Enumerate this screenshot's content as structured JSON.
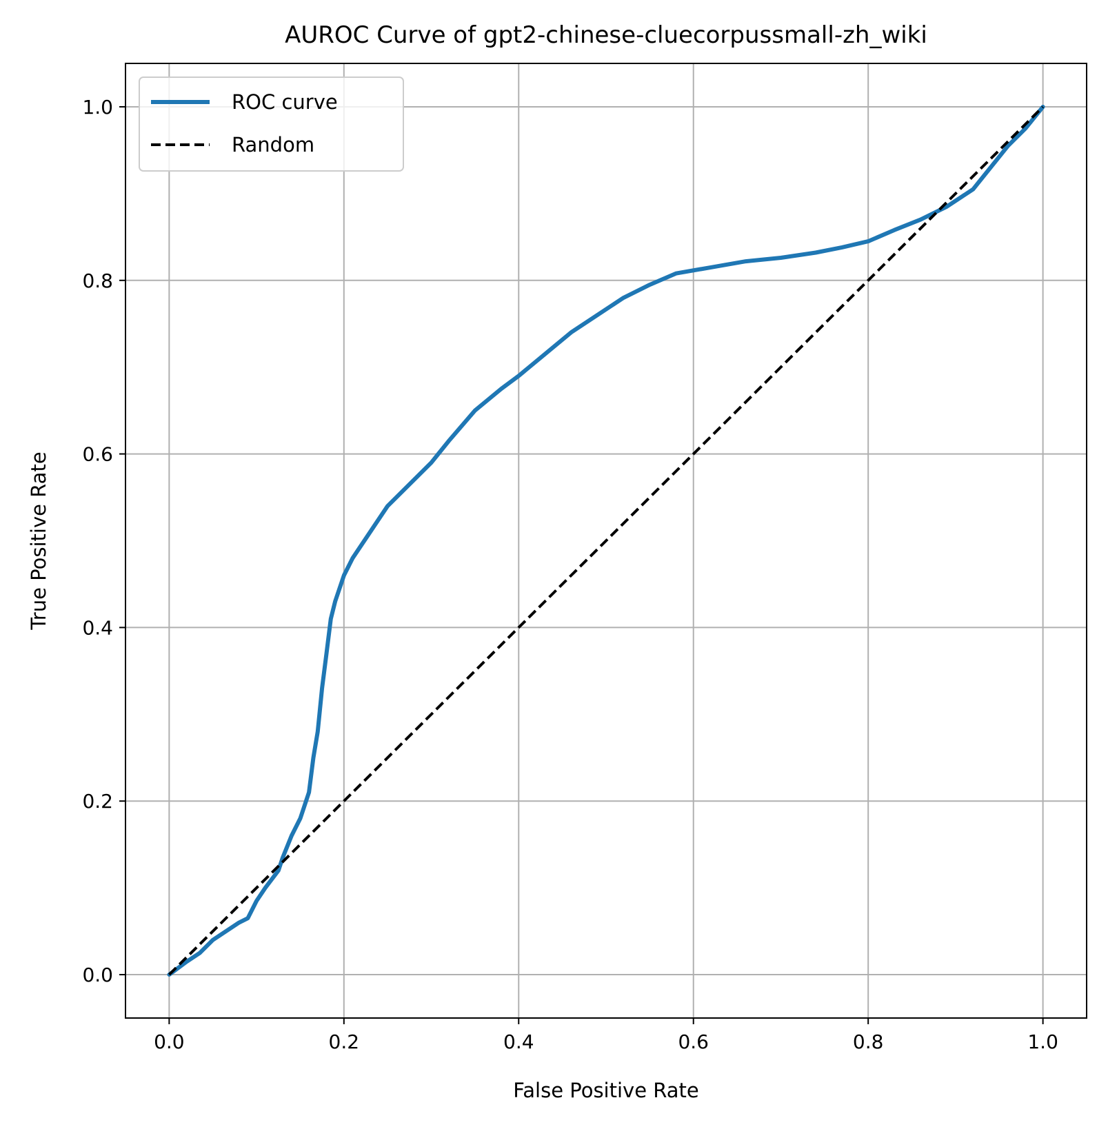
{
  "chart_data": {
    "type": "line",
    "title": "AUROC Curve of gpt2-chinese-cluecorpussmall-zh_wiki",
    "xlabel": "False Positive Rate",
    "ylabel": "True Positive Rate",
    "xlim": [
      -0.05,
      1.05
    ],
    "ylim": [
      -0.05,
      1.05
    ],
    "xticks": [
      0.0,
      0.2,
      0.4,
      0.6,
      0.8,
      1.0
    ],
    "yticks": [
      0.0,
      0.2,
      0.4,
      0.6,
      0.8,
      1.0
    ],
    "xtick_labels": [
      "0.0",
      "0.2",
      "0.4",
      "0.6",
      "0.8",
      "1.0"
    ],
    "ytick_labels": [
      "0.0",
      "0.2",
      "0.4",
      "0.6",
      "0.8",
      "1.0"
    ],
    "grid": true,
    "legend_position": "top-left",
    "series": [
      {
        "name": "ROC curve",
        "color": "#1f77b4",
        "style": "solid",
        "x": [
          0.0,
          0.02,
          0.035,
          0.05,
          0.065,
          0.08,
          0.09,
          0.1,
          0.11,
          0.125,
          0.13,
          0.14,
          0.15,
          0.16,
          0.165,
          0.17,
          0.175,
          0.18,
          0.185,
          0.19,
          0.2,
          0.21,
          0.23,
          0.25,
          0.27,
          0.285,
          0.3,
          0.32,
          0.35,
          0.38,
          0.4,
          0.43,
          0.46,
          0.49,
          0.52,
          0.55,
          0.58,
          0.62,
          0.66,
          0.7,
          0.74,
          0.77,
          0.8,
          0.83,
          0.86,
          0.89,
          0.92,
          0.94,
          0.96,
          0.98,
          1.0
        ],
        "y": [
          0.0,
          0.015,
          0.025,
          0.04,
          0.05,
          0.06,
          0.065,
          0.085,
          0.1,
          0.12,
          0.135,
          0.16,
          0.18,
          0.21,
          0.25,
          0.28,
          0.33,
          0.37,
          0.41,
          0.43,
          0.46,
          0.48,
          0.51,
          0.54,
          0.56,
          0.575,
          0.59,
          0.615,
          0.65,
          0.675,
          0.69,
          0.715,
          0.74,
          0.76,
          0.78,
          0.795,
          0.808,
          0.815,
          0.822,
          0.826,
          0.832,
          0.838,
          0.845,
          0.858,
          0.87,
          0.885,
          0.905,
          0.93,
          0.955,
          0.975,
          1.0
        ]
      },
      {
        "name": "Random",
        "color": "#000000",
        "style": "dashed",
        "x": [
          0.0,
          1.0
        ],
        "y": [
          0.0,
          1.0
        ]
      }
    ]
  }
}
